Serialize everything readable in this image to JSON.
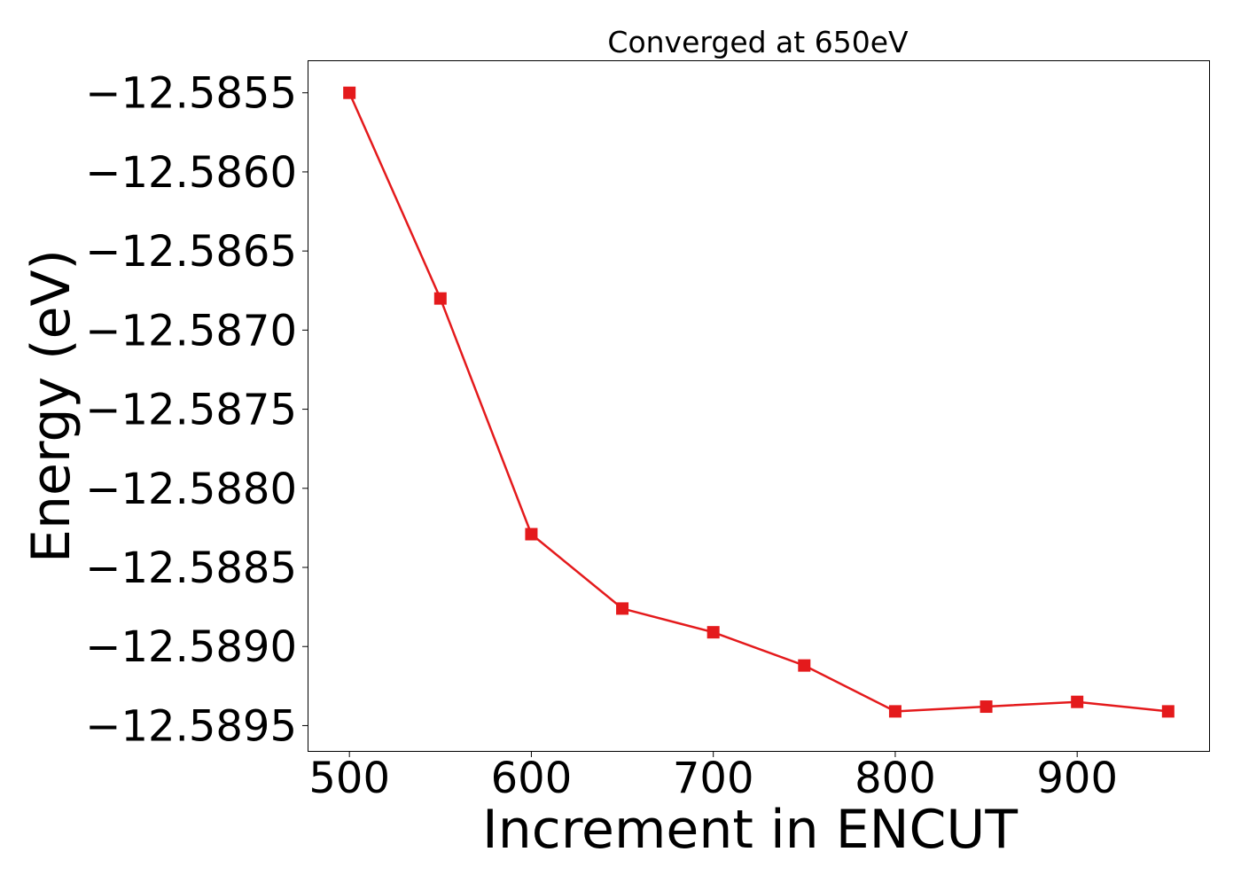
{
  "chart_data": {
    "type": "line",
    "title": "Converged at 650eV",
    "xlabel": "Increment in ENCUT",
    "ylabel": "Energy (eV)",
    "x": [
      500,
      550,
      600,
      650,
      700,
      750,
      800,
      850,
      900,
      950
    ],
    "series": [
      {
        "values": [
          -12.5855,
          -12.5868,
          -12.58829,
          -12.58876,
          -12.58891,
          -12.58912,
          -12.58941,
          -12.58938,
          -12.58935,
          -12.58941
        ],
        "color": "#e41a1c",
        "marker": "square"
      }
    ],
    "xticks": [
      500,
      600,
      700,
      800,
      900
    ],
    "xtick_labels": [
      "500",
      "600",
      "700",
      "800",
      "900"
    ],
    "yticks": [
      -12.5855,
      -12.586,
      -12.5865,
      -12.587,
      -12.5875,
      -12.588,
      -12.5885,
      -12.589,
      -12.5895
    ],
    "ytick_labels": [
      "−12.5855",
      "−12.5860",
      "−12.5865",
      "−12.5870",
      "−12.5875",
      "−12.5880",
      "−12.5885",
      "−12.5890",
      "−12.5895"
    ],
    "xlim": [
      477.5,
      972.5
    ],
    "ylim": [
      -12.58966,
      -12.5853
    ],
    "grid": false,
    "legend": "none"
  }
}
